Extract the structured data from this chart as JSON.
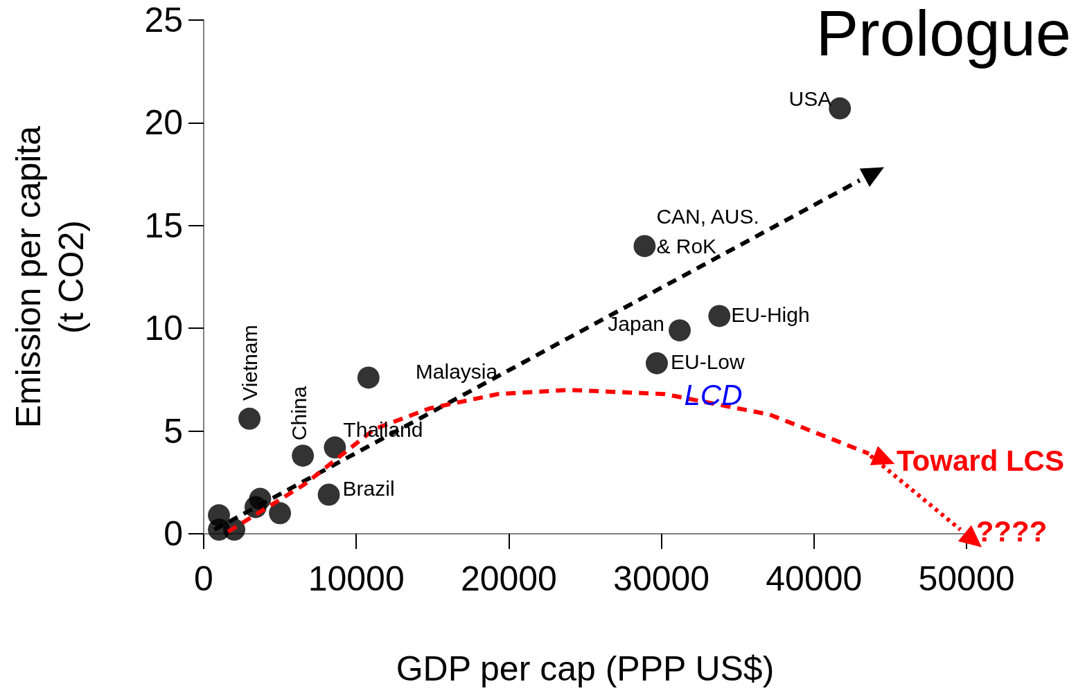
{
  "chart_data": {
    "type": "scatter",
    "title": "Prologue",
    "xlabel": "GDP per cap (PPP US$)",
    "ylabel": "Emission per capita\n(t CO2)",
    "xlim": [
      0,
      50000
    ],
    "xticks": [
      0,
      10000,
      20000,
      30000,
      40000,
      50000
    ],
    "ylim": [
      0,
      25
    ],
    "yticks": [
      0,
      5,
      10,
      15,
      20,
      25
    ],
    "grid": false,
    "series": [
      {
        "color": "#000000",
        "marker": "circle",
        "x": [
          41700,
          28900,
          33800,
          31200,
          29700,
          10800,
          3000,
          6500,
          8600,
          8200,
          5000,
          3700,
          3400,
          1000,
          1000,
          2000
        ],
        "values": [
          20.7,
          14.0,
          10.6,
          9.9,
          8.3,
          7.6,
          5.6,
          3.8,
          4.2,
          1.9,
          1.0,
          1.7,
          1.3,
          0.9,
          0.2,
          0.2
        ]
      },
      {
        "type": "line",
        "color": "#000000",
        "marker": "none",
        "line_style": "dashed",
        "x": [
          700,
          43000
        ],
        "values": [
          0.2,
          17.2
        ]
      },
      {
        "type": "line",
        "color": "#ff0000",
        "marker": "none",
        "line_style": "dashed",
        "x": [
          1600,
          6600,
          11200,
          14800,
          19300,
          23900,
          30200,
          37100,
          43600
        ],
        "values": [
          0.1,
          2.4,
          5.1,
          6.1,
          6.8,
          7.0,
          6.8,
          5.8,
          3.9
        ]
      },
      {
        "type": "line",
        "color": "#ff0000",
        "marker": "none",
        "line_style": "dotted",
        "x": [
          43700,
          49600
        ],
        "values": [
          3.8,
          0.2
        ]
      }
    ],
    "annotations": [
      {
        "text": "USA",
        "x": 41700,
        "y": 20.7
      },
      {
        "text": "CAN, AUS.\n& RoK",
        "x": 28900,
        "y": 14.0
      },
      {
        "text": "EU-High",
        "x": 33800,
        "y": 10.6
      },
      {
        "text": "Japan",
        "x": 31200,
        "y": 9.9
      },
      {
        "text": "EU-Low",
        "x": 29700,
        "y": 8.3
      },
      {
        "text": "Malaysia",
        "x": 10800,
        "y": 7.6
      },
      {
        "text": "Vietnam",
        "x": 3000,
        "y": 5.6
      },
      {
        "text": "China",
        "x": 6500,
        "y": 3.8
      },
      {
        "text": "Thailand",
        "x": 8600,
        "y": 4.2
      },
      {
        "text": "Brazil",
        "x": 8200,
        "y": 1.9
      },
      {
        "text": "LCD",
        "x": 33400,
        "y": 6.3
      },
      "Toward LCS",
      "????"
    ]
  }
}
